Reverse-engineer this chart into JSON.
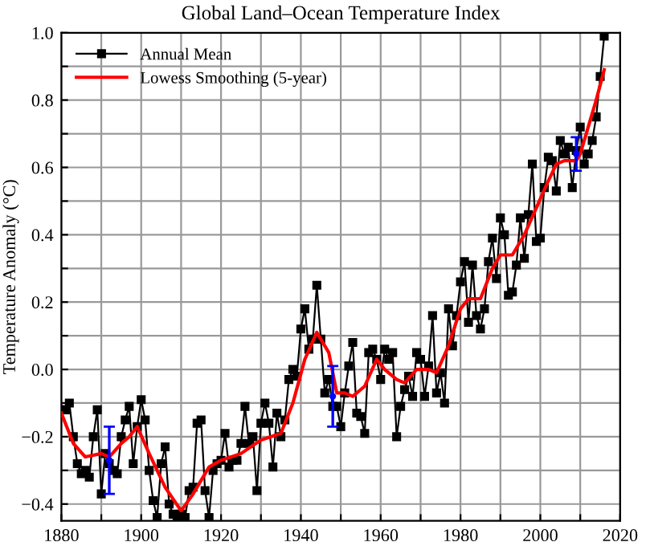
{
  "chart_data": {
    "type": "line",
    "title": "Global Land–Ocean Temperature Index",
    "ylabel": "Temperature Anomaly (°C)",
    "xlim": [
      1880,
      2020
    ],
    "ylim": [
      -0.45,
      1.0
    ],
    "xticks": [
      1880,
      {
        "value": 1890,
        "label": null
      },
      1900,
      {
        "value": 1910,
        "label": null
      },
      1920,
      {
        "value": 1930,
        "label": null
      },
      1940,
      {
        "value": 1950,
        "label": null
      },
      1960,
      {
        "value": 1970,
        "label": null
      },
      1980,
      {
        "value": 1990,
        "label": null
      },
      2000,
      {
        "value": 2010,
        "label": null
      },
      2020
    ],
    "yticks": [
      {
        "value": -0.4,
        "label": "−0.4"
      },
      {
        "value": -0.3,
        "label": null
      },
      {
        "value": -0.2,
        "label": "−0.2"
      },
      {
        "value": -0.1,
        "label": null
      },
      {
        "value": 0,
        "label": "0.0"
      },
      {
        "value": 0.1,
        "label": null
      },
      {
        "value": 0.2,
        "label": "0.2"
      },
      {
        "value": 0.3,
        "label": null
      },
      {
        "value": 0.4,
        "label": "0.4"
      },
      {
        "value": 0.5,
        "label": null
      },
      {
        "value": 0.6,
        "label": "0.6"
      },
      {
        "value": 0.7,
        "label": null
      },
      {
        "value": 0.8,
        "label": "0.8"
      },
      {
        "value": 0.9,
        "label": null
      },
      {
        "value": 1.0,
        "label": "1.0"
      }
    ],
    "grid": true,
    "legend": "top left",
    "line_style": "solid",
    "series": [
      {
        "name": "Annual Mean",
        "color": "#000000",
        "marker": "square",
        "x": [
          1880,
          1881,
          1882,
          1883,
          1884,
          1885,
          1886,
          1887,
          1888,
          1889,
          1890,
          1891,
          1892,
          1893,
          1894,
          1895,
          1896,
          1897,
          1898,
          1899,
          1900,
          1901,
          1902,
          1903,
          1904,
          1905,
          1906,
          1907,
          1908,
          1909,
          1910,
          1911,
          1912,
          1913,
          1914,
          1915,
          1916,
          1917,
          1918,
          1919,
          1920,
          1921,
          1922,
          1923,
          1924,
          1925,
          1926,
          1927,
          1928,
          1929,
          1930,
          1931,
          1932,
          1933,
          1934,
          1935,
          1936,
          1937,
          1938,
          1939,
          1940,
          1941,
          1942,
          1943,
          1944,
          1945,
          1946,
          1947,
          1948,
          1949,
          1950,
          1951,
          1952,
          1953,
          1954,
          1955,
          1956,
          1957,
          1958,
          1959,
          1960,
          1961,
          1962,
          1963,
          1964,
          1965,
          1966,
          1967,
          1968,
          1969,
          1970,
          1971,
          1972,
          1973,
          1974,
          1975,
          1976,
          1977,
          1978,
          1979,
          1980,
          1981,
          1982,
          1983,
          1984,
          1985,
          1986,
          1987,
          1988,
          1989,
          1990,
          1991,
          1992,
          1993,
          1994,
          1995,
          1996,
          1997,
          1998,
          1999,
          2000,
          2001,
          2002,
          2003,
          2004,
          2005,
          2006,
          2007,
          2008,
          2009,
          2010,
          2011,
          2012,
          2013,
          2014,
          2015,
          2016
        ],
        "values": [
          -0.12,
          -0.12,
          -0.1,
          -0.2,
          -0.28,
          -0.31,
          -0.3,
          -0.32,
          -0.2,
          -0.12,
          -0.37,
          -0.25,
          -0.28,
          -0.3,
          -0.31,
          -0.2,
          -0.15,
          -0.11,
          -0.28,
          -0.17,
          -0.09,
          -0.15,
          -0.3,
          -0.39,
          -0.44,
          -0.28,
          -0.23,
          -0.4,
          -0.43,
          -0.44,
          -0.43,
          -0.44,
          -0.36,
          -0.35,
          -0.16,
          -0.15,
          -0.36,
          -0.44,
          -0.3,
          -0.28,
          -0.27,
          -0.19,
          -0.29,
          -0.27,
          -0.27,
          -0.22,
          -0.11,
          -0.22,
          -0.2,
          -0.36,
          -0.16,
          -0.1,
          -0.16,
          -0.29,
          -0.13,
          -0.2,
          -0.15,
          -0.03,
          0.0,
          -0.02,
          0.12,
          0.18,
          0.06,
          0.09,
          0.25,
          0.09,
          -0.07,
          -0.03,
          -0.11,
          -0.11,
          -0.17,
          -0.07,
          0.01,
          0.08,
          -0.13,
          -0.14,
          -0.19,
          0.05,
          0.06,
          0.03,
          -0.03,
          0.06,
          0.03,
          0.05,
          -0.2,
          -0.11,
          -0.06,
          -0.02,
          -0.08,
          0.05,
          0.03,
          -0.08,
          0.01,
          0.16,
          -0.07,
          -0.01,
          -0.1,
          0.18,
          0.07,
          0.16,
          0.26,
          0.32,
          0.14,
          0.31,
          0.16,
          0.12,
          0.18,
          0.32,
          0.39,
          0.27,
          0.45,
          0.4,
          0.22,
          0.23,
          0.31,
          0.45,
          0.33,
          0.46,
          0.61,
          0.38,
          0.39,
          0.54,
          0.63,
          0.62,
          0.53,
          0.68,
          0.64,
          0.66,
          0.54,
          0.65,
          0.72,
          0.61,
          0.64,
          0.68,
          0.75,
          0.87,
          0.99
        ]
      },
      {
        "name": "Lowess Smoothing (5-year)",
        "color": "#ff0000",
        "marker": "none",
        "x": [
          1880,
          1883,
          1886,
          1890,
          1892,
          1895,
          1897,
          1899,
          1902,
          1906,
          1910,
          1913,
          1917,
          1920,
          1925,
          1930,
          1935,
          1938,
          1941,
          1944,
          1947,
          1949,
          1951,
          1953,
          1956,
          1959,
          1961,
          1964,
          1966,
          1969,
          1972,
          1974,
          1977,
          1980,
          1982,
          1985,
          1988,
          1990,
          1993,
          1996,
          1999,
          2002,
          2004,
          2006,
          2009,
          2010,
          2012,
          2014,
          2016
        ],
        "values": [
          -0.13,
          -0.22,
          -0.26,
          -0.25,
          -0.26,
          -0.22,
          -0.2,
          -0.17,
          -0.25,
          -0.35,
          -0.42,
          -0.37,
          -0.29,
          -0.27,
          -0.25,
          -0.21,
          -0.19,
          -0.1,
          0.03,
          0.11,
          0.05,
          -0.07,
          -0.07,
          -0.08,
          -0.05,
          0.03,
          0.0,
          -0.03,
          -0.04,
          0.0,
          0.0,
          -0.01,
          0.07,
          0.18,
          0.21,
          0.21,
          0.3,
          0.34,
          0.34,
          0.4,
          0.48,
          0.56,
          0.61,
          0.62,
          0.62,
          0.64,
          0.72,
          0.8,
          0.89
        ]
      },
      {
        "type": "scatter",
        "color": "#0000ff",
        "marker": "none",
        "x": [
          1892,
          1948,
          2009
        ],
        "values": [
          -0.27,
          -0.08,
          0.64
        ],
        "errors": [
          0.1,
          0.09,
          0.05
        ]
      }
    ]
  }
}
